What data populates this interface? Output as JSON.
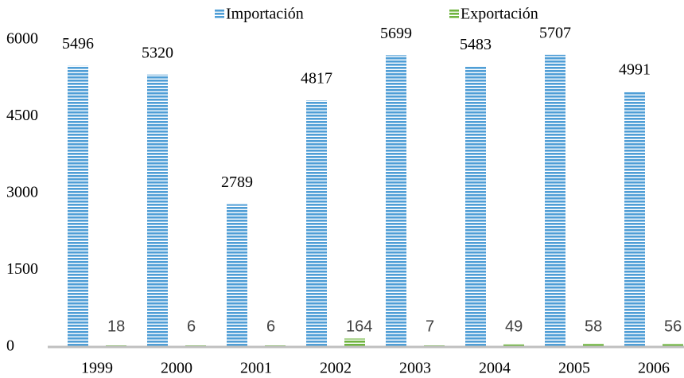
{
  "chart_data": {
    "type": "bar",
    "categories": [
      "1999",
      "2000",
      "2001",
      "2002",
      "2003",
      "2004",
      "2005",
      "2006"
    ],
    "series": [
      {
        "name": "Importación",
        "color": "#4f9ed6",
        "values": [
          5496,
          5320,
          2789,
          4817,
          5699,
          5483,
          5707,
          4991
        ]
      },
      {
        "name": "Exportación",
        "color": "#6fb43f",
        "values": [
          18,
          6,
          6,
          164,
          7,
          49,
          58,
          56
        ]
      }
    ],
    "ylim": [
      0,
      6000
    ],
    "yticks": [
      0,
      1500,
      3000,
      4500,
      6000
    ],
    "grid": false,
    "legend": "top"
  }
}
